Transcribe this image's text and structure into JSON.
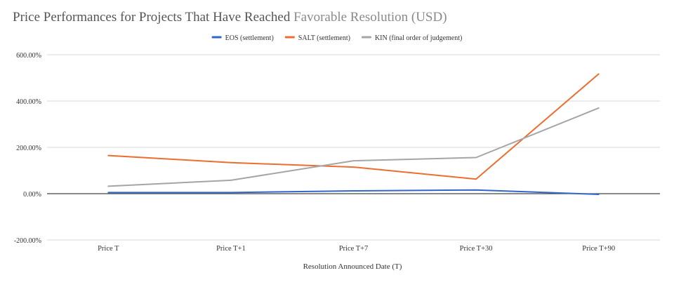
{
  "chart_data": {
    "type": "line",
    "title": "Price Performances for Projects That Have Reached",
    "title_accent": "Favorable Resolution (USD)",
    "xlabel": "Resolution Announced Date (T)",
    "ylabel": "",
    "categories": [
      "Price T",
      "Price T+1",
      "Price T+7",
      "Price T+30",
      "Price T+90"
    ],
    "ylim": [
      -200,
      600
    ],
    "yticks": [
      -200,
      0,
      200,
      400,
      600
    ],
    "ytick_labels": [
      "-200.00%",
      "0.00%",
      "200.00%",
      "400.00%",
      "600.00%"
    ],
    "grid": true,
    "legend_position": "top",
    "series": [
      {
        "name": "EOS (settlement)",
        "color": "#3366cc",
        "values": [
          5,
          5,
          12,
          16,
          -3
        ]
      },
      {
        "name": "SALT (settlement)",
        "color": "#ed6d2f",
        "values": [
          165,
          134,
          115,
          63,
          517
        ]
      },
      {
        "name": "KIN (final order of judgement)",
        "color": "#a5a5a5",
        "values": [
          32,
          58,
          142,
          156,
          370
        ]
      }
    ]
  }
}
